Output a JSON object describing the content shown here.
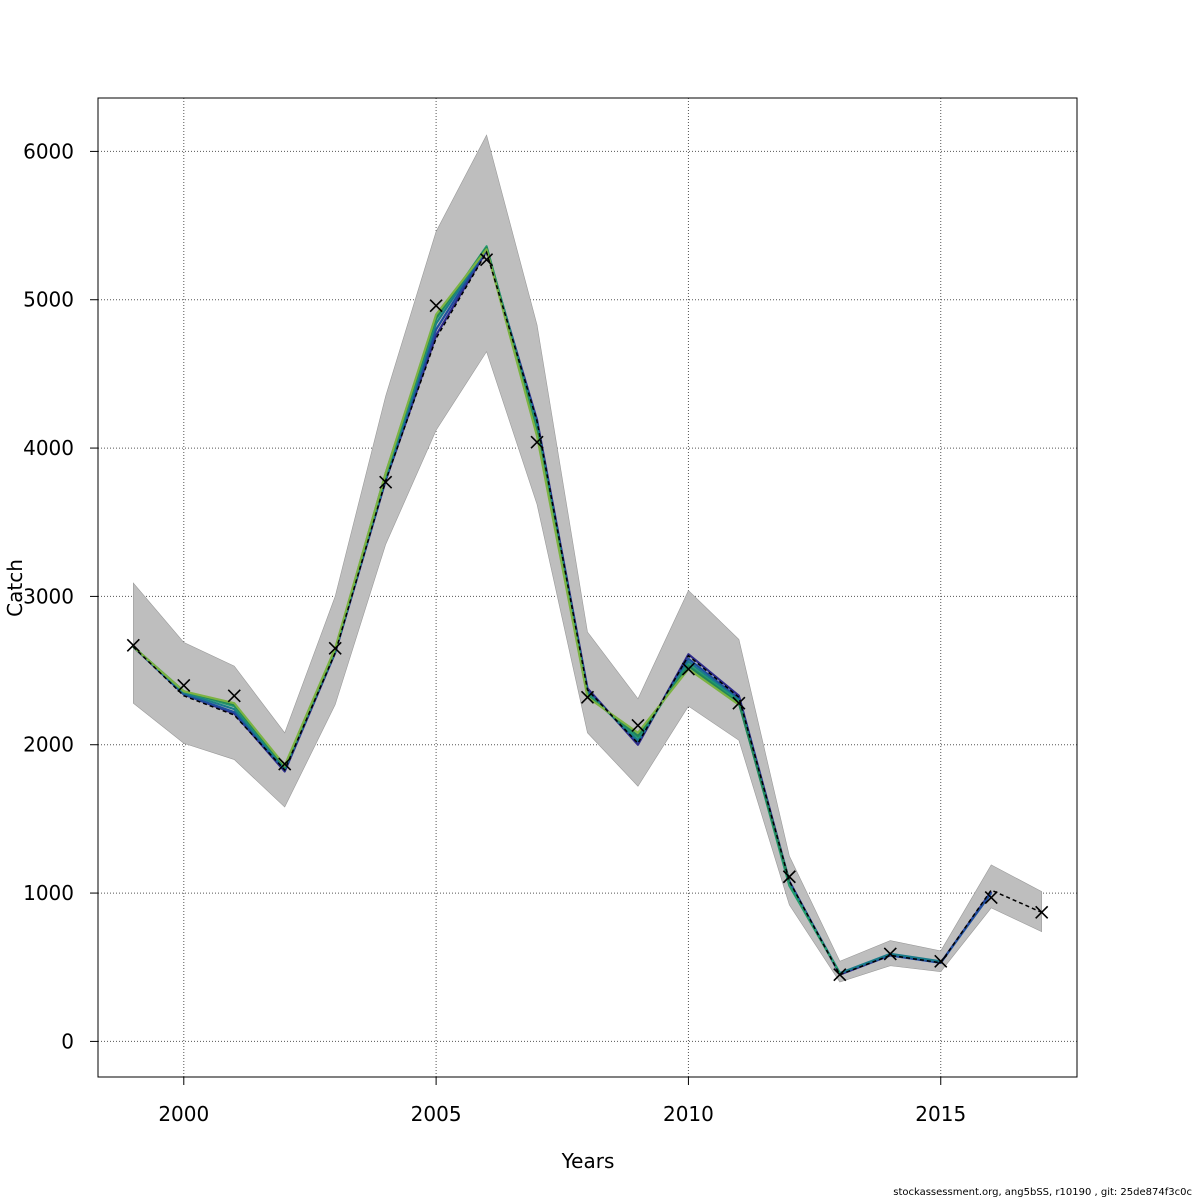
{
  "chart_data": {
    "type": "line",
    "xlabel": "Years",
    "ylabel": "Catch",
    "xlim": [
      1998.3,
      2017.7
    ],
    "ylim": [
      -240,
      6360
    ],
    "x_ticks": [
      2000,
      2005,
      2010,
      2015
    ],
    "y_ticks": [
      0,
      1000,
      2000,
      3000,
      4000,
      5000,
      6000
    ],
    "grid": true,
    "x": [
      1999,
      2000,
      2001,
      2002,
      2003,
      2004,
      2005,
      2006,
      2007,
      2008,
      2009,
      2010,
      2011,
      2012,
      2013,
      2014,
      2015,
      2016,
      2017
    ],
    "band_lower": [
      2280,
      2010,
      1900,
      1580,
      2270,
      3350,
      4120,
      4650,
      3620,
      2080,
      1720,
      2260,
      2030,
      920,
      400,
      510,
      470,
      900,
      740
    ],
    "band_upper": [
      3090,
      2690,
      2530,
      2080,
      3000,
      4350,
      5460,
      6110,
      4830,
      2760,
      2310,
      3040,
      2710,
      1250,
      540,
      680,
      610,
      1190,
      1010
    ],
    "observed": [
      2670,
      2400,
      2330,
      1870,
      2650,
      3770,
      4960,
      5270,
      4040,
      2320,
      2130,
      2510,
      2280,
      1110,
      450,
      590,
      540,
      970,
      870
    ],
    "fitted": [
      2660,
      2330,
      2200,
      1830,
      2620,
      3780,
      4740,
      5320,
      4180,
      2370,
      2010,
      2600,
      2320,
      1080,
      450,
      580,
      530,
      1020,
      870
    ],
    "series": [
      {
        "color": "#2e2a8a",
        "values": [
          2660,
          2340,
          2210,
          1820,
          2620,
          3780,
          4760,
          5330,
          4190,
          2380,
          2000,
          2610,
          2330,
          1080,
          450,
          580,
          530,
          1010,
          null
        ]
      },
      {
        "color": "#1f4e9e",
        "values": [
          2660,
          2340,
          2220,
          1830,
          2630,
          3790,
          4800,
          5340,
          4170,
          2360,
          2020,
          2580,
          2310,
          1070,
          460,
          580,
          530,
          1000,
          null
        ]
      },
      {
        "color": "#1a7b8a",
        "values": [
          2660,
          2350,
          2240,
          1840,
          2630,
          3800,
          4840,
          5350,
          4150,
          2350,
          2030,
          2560,
          2300,
          1060,
          460,
          590,
          540,
          null,
          null
        ]
      },
      {
        "color": "#239c6e",
        "values": [
          2660,
          2360,
          2260,
          1850,
          2640,
          3820,
          4870,
          5360,
          4120,
          2340,
          2050,
          2540,
          2290,
          1050,
          460,
          null,
          null,
          null,
          null
        ]
      },
      {
        "color": "#21845a",
        "values": [
          2660,
          2360,
          2270,
          1850,
          2640,
          3830,
          4880,
          5350,
          4100,
          2330,
          2060,
          2530,
          2280,
          1080,
          null,
          null,
          null,
          null,
          null
        ]
      },
      {
        "color": "#7cb342",
        "values": [
          2660,
          2360,
          2280,
          1860,
          2650,
          3830,
          4900,
          5340,
          4080,
          2320,
          2080,
          2510,
          2270,
          null,
          null,
          null,
          null,
          null,
          null
        ]
      }
    ],
    "band_color": "#bebebe"
  },
  "footer_text": "stockassessment.org, ang5bSS, r10190 , git: 25de874f3c0c"
}
